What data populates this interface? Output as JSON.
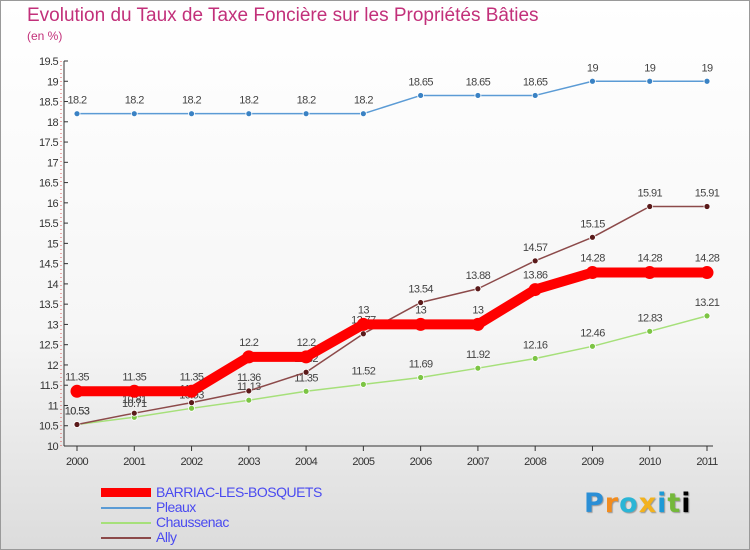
{
  "title": "Evolution du Taux de Taxe Foncière sur les Propriétés Bâties",
  "unit": "(en %)",
  "logo": [
    "P",
    "r",
    "o",
    "x",
    "i",
    "t",
    "i"
  ],
  "chart_data": {
    "type": "line",
    "title": "Evolution du Taux de Taxe Foncière sur les Propriétés Bâties",
    "ylabel": "(en %)",
    "xlabel": "",
    "ylim": [
      10,
      19.5
    ],
    "yticks": [
      "10",
      "10.5",
      "11",
      "11.5",
      "12",
      "12.5",
      "13",
      "13.5",
      "14",
      "14.5",
      "15",
      "15.5",
      "16",
      "16.5",
      "17",
      "17.5",
      "18",
      "18.5",
      "19",
      "19.5"
    ],
    "categories": [
      "2000",
      "2001",
      "2002",
      "2003",
      "2004",
      "2005",
      "2006",
      "2007",
      "2008",
      "2009",
      "2010",
      "2011"
    ],
    "grid": false,
    "legend": "bottom-left",
    "series": [
      {
        "name": "BARRIAC-LES-BOSQUETS",
        "color": "#ff0000",
        "marker_color": "#ff0000",
        "values": [
          11.35,
          11.35,
          11.35,
          12.2,
          12.2,
          13,
          13,
          13,
          13.86,
          14.28,
          14.28,
          14.28
        ],
        "labels": [
          "11.35",
          "11.35",
          "11.35",
          "12.2",
          "12.2",
          "13",
          "13",
          "13",
          "13.86",
          "14.28",
          "14.28",
          "14.28"
        ]
      },
      {
        "name": "Pleaux",
        "color": "#5b9bd5",
        "marker_color": "#3a82c4",
        "values": [
          18.2,
          18.2,
          18.2,
          18.2,
          18.2,
          18.2,
          18.65,
          18.65,
          18.65,
          19,
          19,
          19
        ],
        "labels": [
          "18.2",
          "18.2",
          "18.2",
          "18.2",
          "18.2",
          "18.2",
          "18.65",
          "18.65",
          "18.65",
          "19",
          "19",
          "19"
        ]
      },
      {
        "name": "Chaussenac",
        "color": "#a6e07a",
        "marker_color": "#7cc444",
        "values": [
          10.53,
          10.71,
          10.93,
          11.13,
          11.35,
          11.52,
          11.69,
          11.92,
          12.16,
          12.46,
          12.83,
          13.21
        ],
        "labels": [
          "10.53",
          "10.71",
          "10.93",
          "11.13",
          "11.35",
          "11.52",
          "11.69",
          "11.92",
          "12.16",
          "12.46",
          "12.83",
          "13.21"
        ]
      },
      {
        "name": "Ally",
        "color": "#8c4a4a",
        "marker_color": "#5a1a1a",
        "values": [
          10.53,
          10.81,
          11.07,
          11.36,
          11.82,
          12.77,
          13.54,
          13.88,
          14.57,
          15.15,
          15.91,
          15.91
        ],
        "labels": [
          "10.53",
          "10.81",
          "11.07",
          "11.36",
          "11.82",
          "12.77",
          "13.54",
          "13.88",
          "14.57",
          "15.15",
          "15.91",
          "15.91"
        ]
      }
    ]
  }
}
